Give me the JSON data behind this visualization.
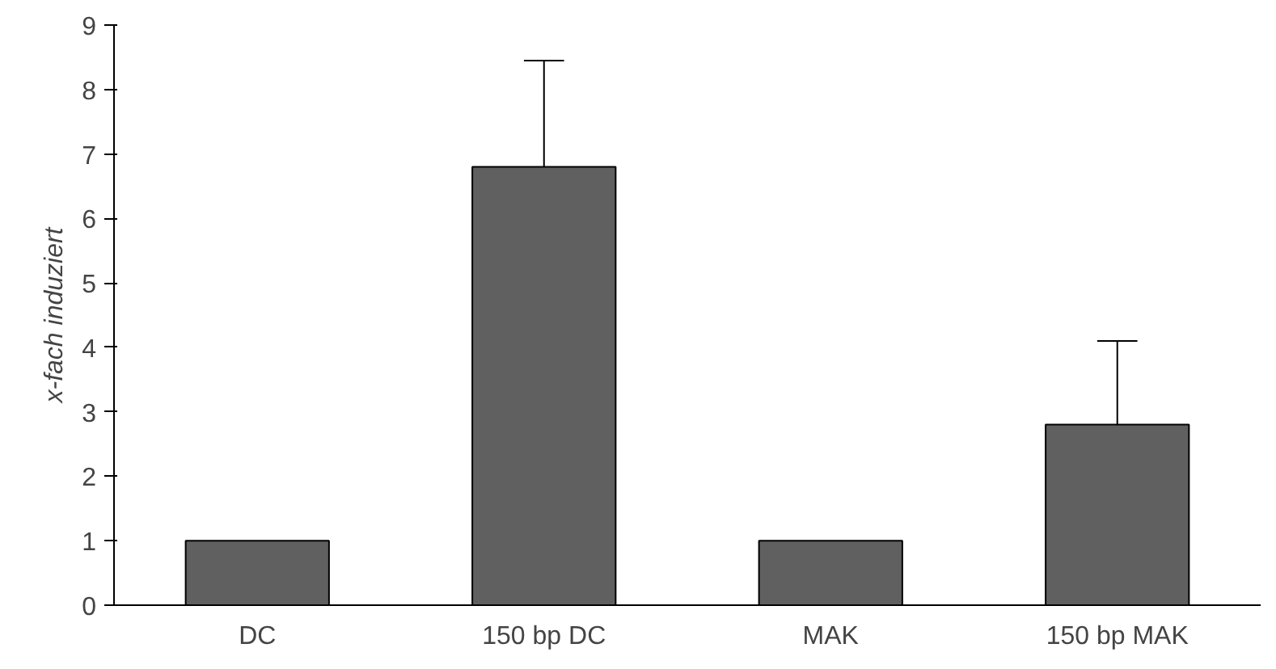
{
  "chart_data": {
    "type": "bar",
    "ylabel": "x-fach induziert",
    "categories": [
      "DC",
      "150 bp DC",
      "MAK",
      "150 bp MAK"
    ],
    "values": [
      1,
      6.8,
      1,
      2.8
    ],
    "errors": [
      null,
      [
        6.8,
        8.45
      ],
      null,
      [
        2.8,
        4.1
      ]
    ],
    "color": "#606060",
    "ylim": [
      0,
      9
    ],
    "yticks": [
      0,
      1,
      2,
      3,
      4,
      5,
      6,
      7,
      8,
      9
    ],
    "grid": false
  }
}
